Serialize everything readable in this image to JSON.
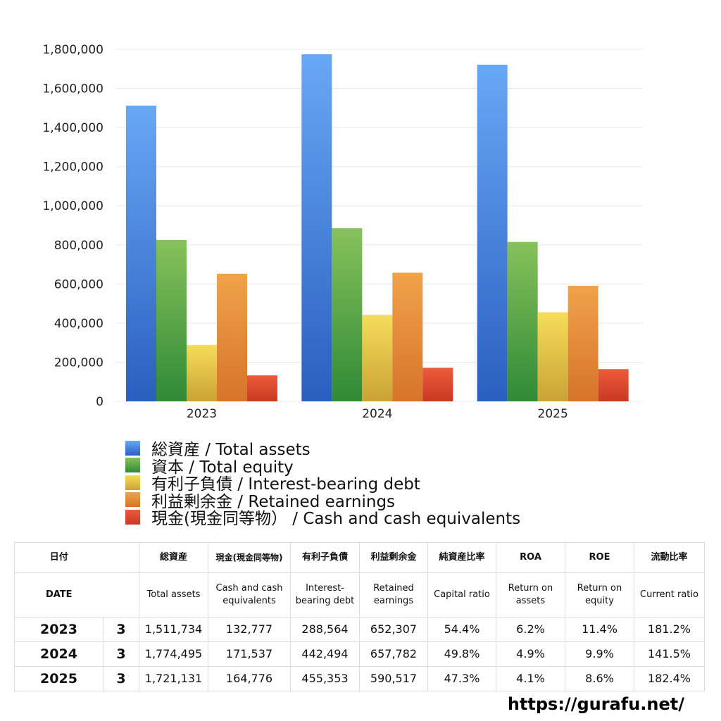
{
  "chart_data": {
    "type": "bar",
    "categories": [
      "2023",
      "2024",
      "2025"
    ],
    "series": [
      {
        "name": "総資産 / Total assets",
        "values": [
          1511734,
          1774495,
          1721131
        ],
        "color_top": "#67a8f5",
        "color_bottom": "#2a5fbf"
      },
      {
        "name": "資本 / Total equity",
        "values": [
          825000,
          885000,
          815000
        ],
        "color_top": "#86c25a",
        "color_bottom": "#2f8a36"
      },
      {
        "name": "有利子負債 / Interest-bearing debt",
        "values": [
          288564,
          442494,
          455353
        ],
        "color_top": "#f7dc5a",
        "color_bottom": "#c9a334"
      },
      {
        "name": "利益剰余金 / Retained earnings",
        "values": [
          652307,
          657782,
          590517
        ],
        "color_top": "#f0a24a",
        "color_bottom": "#d6742a"
      },
      {
        "name": "現金(現金同等物） /  Cash and cash equivalents",
        "values": [
          132777,
          171537,
          164776
        ],
        "color_top": "#ee5a3a",
        "color_bottom": "#c73a22"
      }
    ],
    "yticks": [
      "0",
      "200,000",
      "400,000",
      "600,000",
      "800,000",
      "1,000,000",
      "1,200,000",
      "1,400,000",
      "1,600,000",
      "1,800,000"
    ],
    "ylim": [
      0,
      1800000
    ],
    "grid": true,
    "legend_position": "bottom"
  },
  "table": {
    "header_ja": [
      "日付",
      "",
      "総資産",
      "現金(現金同等物)",
      "有利子負債",
      "利益剰余金",
      "純資産比率",
      "ROA",
      "ROE",
      "流動比率"
    ],
    "header_en": [
      "DATE",
      "",
      "Total assets",
      "Cash and cash equivalents",
      "Interest-bearing debt",
      "Retained earnings",
      "Capital ratio",
      "Return on assets",
      "Return on equity",
      "Current ratio"
    ],
    "rows": [
      [
        "2023",
        "3",
        "1,511,734",
        "132,777",
        "288,564",
        "652,307",
        "54.4%",
        "6.2%",
        "11.4%",
        "181.2%"
      ],
      [
        "2024",
        "3",
        "1,774,495",
        "171,537",
        "442,494",
        "657,782",
        "49.8%",
        "4.9%",
        "9.9%",
        "141.5%"
      ],
      [
        "2025",
        "3",
        "1,721,131",
        "164,776",
        "455,353",
        "590,517",
        "47.3%",
        "4.1%",
        "8.6%",
        "182.4%"
      ]
    ]
  },
  "footer": {
    "site_url": "https://gurafu.net/"
  }
}
